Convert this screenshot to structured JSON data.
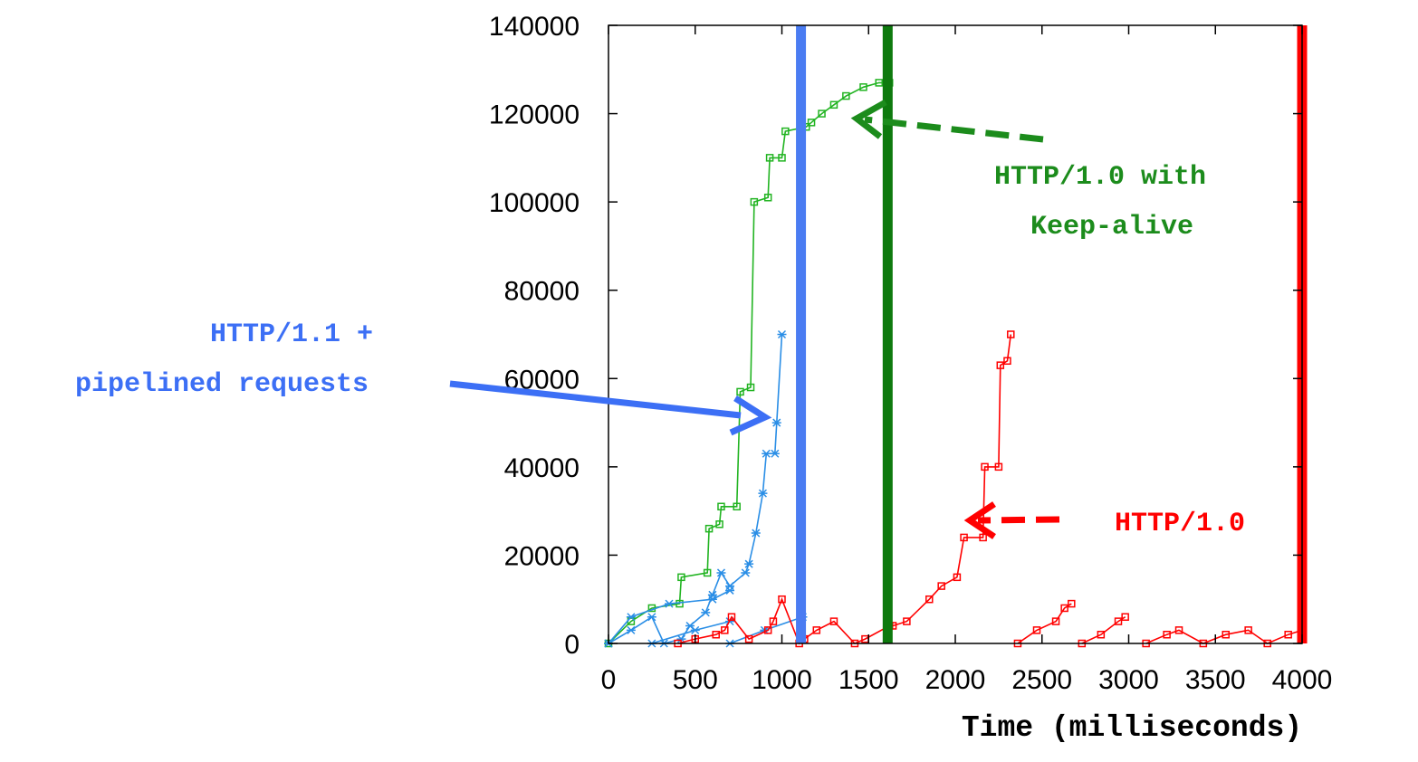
{
  "chart_data": {
    "type": "line",
    "xlabel": "Time (milliseconds)",
    "ylabel": "",
    "xlim": [
      0,
      4000
    ],
    "ylim": [
      0,
      140000
    ],
    "x_ticks": [
      "0",
      "500",
      "1000",
      "1500",
      "2000",
      "2500",
      "3000",
      "3500",
      "4000"
    ],
    "y_ticks": [
      "0",
      "20000",
      "40000",
      "60000",
      "80000",
      "100000",
      "120000",
      "140000"
    ],
    "grid": false,
    "legend": "none",
    "series": [
      {
        "color": "#22b422",
        "marker": "square",
        "points": [
          [
            0,
            0
          ],
          [
            130,
            5000
          ],
          [
            250,
            8000
          ],
          [
            410,
            9000
          ],
          [
            420,
            15000
          ],
          [
            570,
            16000
          ],
          [
            580,
            26000
          ],
          [
            640,
            27000
          ],
          [
            650,
            31000
          ],
          [
            740,
            31000
          ],
          [
            760,
            57000
          ],
          [
            820,
            58000
          ],
          [
            840,
            100000
          ],
          [
            920,
            101000
          ],
          [
            930,
            110000
          ],
          [
            1000,
            110000
          ],
          [
            1020,
            116000
          ],
          [
            1140,
            117000
          ],
          [
            1170,
            118000
          ],
          [
            1230,
            120000
          ],
          [
            1300,
            122000
          ],
          [
            1370,
            124000
          ],
          [
            1470,
            126000
          ],
          [
            1560,
            127000
          ],
          [
            1620,
            127000
          ]
        ]
      },
      {
        "color": "#2a8ee6",
        "marker": "star",
        "points": [
          [
            0,
            0
          ],
          [
            130,
            3000
          ],
          [
            250,
            6000
          ],
          [
            320,
            0
          ],
          [
            420,
            1000
          ],
          [
            470,
            4000
          ],
          [
            560,
            7000
          ],
          [
            600,
            11000
          ],
          [
            650,
            16000
          ],
          [
            700,
            13000
          ],
          [
            790,
            16000
          ],
          [
            810,
            18000
          ],
          [
            850,
            25000
          ],
          [
            890,
            34000
          ],
          [
            910,
            43000
          ],
          [
            960,
            43000
          ],
          [
            970,
            50000
          ],
          [
            1000,
            70000
          ]
        ]
      },
      {
        "color": "#2a8ee6",
        "marker": "star",
        "points": [
          [
            0,
            0
          ],
          [
            130,
            6000
          ],
          [
            350,
            9000
          ],
          [
            600,
            10000
          ],
          [
            700,
            12000
          ]
        ]
      },
      {
        "color": "#2a8ee6",
        "marker": "star",
        "points": [
          [
            250,
            0
          ],
          [
            500,
            3000
          ],
          [
            700,
            5000
          ]
        ]
      },
      {
        "color": "#2a8ee6",
        "marker": "star",
        "points": [
          [
            700,
            0
          ],
          [
            900,
            3000
          ],
          [
            1120,
            6000
          ]
        ]
      },
      {
        "color": "#ff0000",
        "marker": "square",
        "points": [
          [
            400,
            0
          ],
          [
            500,
            1000
          ],
          [
            620,
            2000
          ],
          [
            670,
            3000
          ],
          [
            710,
            6000
          ],
          [
            810,
            1000
          ],
          [
            920,
            3000
          ],
          [
            950,
            5000
          ],
          [
            1000,
            10000
          ],
          [
            1100,
            0
          ],
          [
            1130,
            1000
          ],
          [
            1200,
            3000
          ],
          [
            1300,
            5000
          ],
          [
            1420,
            0
          ],
          [
            1480,
            1000
          ],
          [
            1620,
            4000
          ],
          [
            1640,
            4000
          ],
          [
            1720,
            5000
          ],
          [
            1850,
            10000
          ],
          [
            1920,
            13000
          ],
          [
            2010,
            15000
          ],
          [
            2050,
            24000
          ],
          [
            2160,
            24000
          ],
          [
            2170,
            40000
          ],
          [
            2250,
            40000
          ],
          [
            2260,
            63000
          ],
          [
            2300,
            64000
          ],
          [
            2320,
            70000
          ]
        ]
      },
      {
        "color": "#ff0000",
        "marker": "square",
        "points": [
          [
            2360,
            0
          ],
          [
            2470,
            3000
          ],
          [
            2580,
            5000
          ],
          [
            2630,
            8000
          ],
          [
            2670,
            9000
          ]
        ]
      },
      {
        "color": "#ff0000",
        "marker": "square",
        "points": [
          [
            2730,
            0
          ],
          [
            2840,
            2000
          ],
          [
            2940,
            5000
          ],
          [
            2980,
            6000
          ]
        ]
      },
      {
        "color": "#ff0000",
        "marker": "square",
        "points": [
          [
            3100,
            0
          ],
          [
            3220,
            2000
          ],
          [
            3290,
            3000
          ],
          [
            3430,
            0
          ],
          [
            3560,
            2000
          ],
          [
            3690,
            3000
          ],
          [
            3800,
            0
          ],
          [
            3920,
            2000
          ],
          [
            4000,
            3000
          ]
        ]
      }
    ],
    "vertical_lines": [
      {
        "x": 1110,
        "color": "#4a7cf2"
      },
      {
        "x": 1610,
        "color": "#0e7a0e"
      },
      {
        "x": 4000,
        "color": "#ff0000"
      }
    ],
    "annotations": [
      {
        "lines": [
          "HTTP/1.1 +",
          "pipelined requests"
        ],
        "color": "#3c6ff5"
      },
      {
        "lines": [
          "HTTP/1.0 with",
          "Keep-alive"
        ],
        "color": "#1c8c1c"
      },
      {
        "lines": [
          "HTTP/1.0"
        ],
        "color": "#ff0000"
      }
    ]
  }
}
